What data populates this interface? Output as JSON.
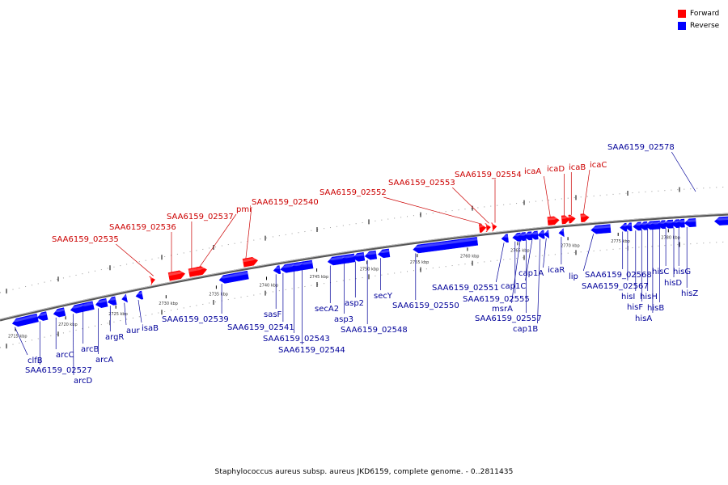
{
  "legend": [
    {
      "label": "Forward",
      "color": "#ff0000"
    },
    {
      "label": "Reverse",
      "color": "#0000ff"
    }
  ],
  "caption": "Staphylococcus aureus subsp. aureus JKD6159, complete genome. - 0..2811435",
  "colors": {
    "forward": "#ff0000",
    "reverse": "#0000ff",
    "forward_label": "#cc0000",
    "reverse_label": "#000099"
  },
  "axis_ticks": [
    {
      "label": "2715 kbp",
      "kb": 2715
    },
    {
      "label": "2720 kbp",
      "kb": 2720
    },
    {
      "label": "2725 kbp",
      "kb": 2725
    },
    {
      "label": "2730 kbp",
      "kb": 2730
    },
    {
      "label": "2735 kbp",
      "kb": 2735
    },
    {
      "label": "2740 kbp",
      "kb": 2740
    },
    {
      "label": "2745 kbp",
      "kb": 2745
    },
    {
      "label": "2750 kbp",
      "kb": 2750
    },
    {
      "label": "2755 kbp",
      "kb": 2755
    },
    {
      "label": "2760 kbp",
      "kb": 2760
    },
    {
      "label": "2765 kbp",
      "kb": 2765
    },
    {
      "label": "2770 kbp",
      "kb": 2770
    },
    {
      "label": "2775 kbp",
      "kb": 2775
    },
    {
      "label": "2780 kbp",
      "kb": 2780
    }
  ],
  "forward_genes": [
    {
      "name": "SAA6159_02535",
      "kb": 2728.5
    },
    {
      "name": "SAA6159_02536",
      "kb": 2730.3
    },
    {
      "name": "SAA6159_02537",
      "kb": 2732.3
    },
    {
      "name": "pmi",
      "kb": 2733.1
    },
    {
      "name": "SAA6159_02540",
      "kb": 2737.7
    },
    {
      "name": "SAA6159_02552",
      "kb": 2761.2
    },
    {
      "name": "SAA6159_02553",
      "kb": 2761.9
    },
    {
      "name": "SAA6159_02554",
      "kb": 2762.5
    },
    {
      "name": "icaA",
      "kb": 2768.0
    },
    {
      "name": "icaD",
      "kb": 2769.4
    },
    {
      "name": "icaB",
      "kb": 2770.1
    },
    {
      "name": "icaC",
      "kb": 2771.3
    }
  ],
  "reverse_genes": [
    {
      "name": "clfB",
      "kb": 2714.7
    },
    {
      "name": "SAA6159_02527",
      "kb": 2717.2
    },
    {
      "name": "arcC",
      "kb": 2718.8
    },
    {
      "name": "arcD",
      "kb": 2720.5
    },
    {
      "name": "arcB",
      "kb": 2721.5
    },
    {
      "name": "arcA",
      "kb": 2723.0
    },
    {
      "name": "argR",
      "kb": 2724.2
    },
    {
      "name": "aur",
      "kb": 2725.6
    },
    {
      "name": "isaB",
      "kb": 2727.0
    },
    {
      "name": "SAA6159_02539",
      "kb": 2735.3
    },
    {
      "name": "sasF",
      "kb": 2740.7
    },
    {
      "name": "SAA6159_02541",
      "kb": 2741.4
    },
    {
      "name": "SAA6159_02543",
      "kb": 2742.5
    },
    {
      "name": "SAA6159_02544",
      "kb": 2743.3
    },
    {
      "name": "secA2",
      "kb": 2746.1
    },
    {
      "name": "asp3",
      "kb": 2747.5
    },
    {
      "name": "asp2",
      "kb": 2748.6
    },
    {
      "name": "SAA6159_02548",
      "kb": 2749.8
    },
    {
      "name": "secY",
      "kb": 2751.1
    },
    {
      "name": "SAA6159_02550",
      "kb": 2754.6
    },
    {
      "name": "SAA6159_02551",
      "kb": 2763.4
    },
    {
      "name": "SAA6159_02555",
      "kb": 2764.5
    },
    {
      "name": "msrA",
      "kb": 2765.0
    },
    {
      "name": "SAA6159_02557",
      "kb": 2765.6
    },
    {
      "name": "cap1C",
      "kb": 2766.2
    },
    {
      "name": "cap1B",
      "kb": 2767.0
    },
    {
      "name": "cap1A",
      "kb": 2767.6
    },
    {
      "name": "icaR",
      "kb": 2769.1
    },
    {
      "name": "lip",
      "kb": 2772.3
    },
    {
      "name": "SAA6159_02568",
      "kb": 2775.2
    },
    {
      "name": "SAA6159_02567",
      "kb": 2775.7
    },
    {
      "name": "hisI",
      "kb": 2776.5
    },
    {
      "name": "hisF",
      "kb": 2777.1
    },
    {
      "name": "hisH",
      "kb": 2777.7
    },
    {
      "name": "hisA",
      "kb": 2778.2
    },
    {
      "name": "hisB",
      "kb": 2778.9
    },
    {
      "name": "hisC",
      "kb": 2779.5
    },
    {
      "name": "hisD",
      "kb": 2780.3
    },
    {
      "name": "hisG",
      "kb": 2780.8
    },
    {
      "name": "hisZ",
      "kb": 2781.6
    },
    {
      "name": "SAA6159_02578",
      "kb": 2784.6
    }
  ]
}
